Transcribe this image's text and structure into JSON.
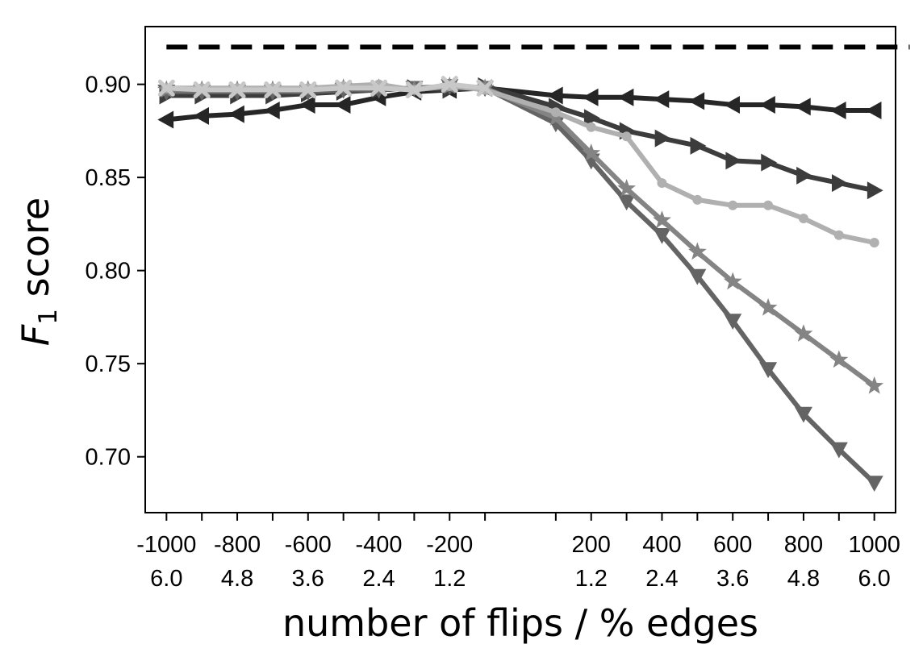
{
  "chart_data": {
    "type": "line",
    "xlabel": "number of flips / % edges",
    "ylabel_main": "F",
    "ylabel_sub": "1",
    "ylabel_rest": " score",
    "xlim": [
      -1060,
      1060
    ],
    "ylim": [
      0.67,
      0.931
    ],
    "yticks": [
      "0.70",
      "0.75",
      "0.80",
      "0.85",
      "0.90"
    ],
    "ytick_values": [
      0.7,
      0.75,
      0.8,
      0.85,
      0.9
    ],
    "xticks": [
      {
        "x": -1000,
        "top": "-1000",
        "bottom": "6.0"
      },
      {
        "x": -900,
        "top": "",
        "bottom": ""
      },
      {
        "x": -800,
        "top": "-800",
        "bottom": "4.8"
      },
      {
        "x": -700,
        "top": "",
        "bottom": ""
      },
      {
        "x": -600,
        "top": "-600",
        "bottom": "3.6"
      },
      {
        "x": -500,
        "top": "",
        "bottom": ""
      },
      {
        "x": -400,
        "top": "-400",
        "bottom": "2.4"
      },
      {
        "x": -300,
        "top": "",
        "bottom": ""
      },
      {
        "x": -200,
        "top": "-200",
        "bottom": "1.2"
      },
      {
        "x": -100,
        "top": "",
        "bottom": ""
      },
      {
        "x": 100,
        "top": "",
        "bottom": ""
      },
      {
        "x": 200,
        "top": "200",
        "bottom": "1.2"
      },
      {
        "x": 300,
        "top": "",
        "bottom": ""
      },
      {
        "x": 400,
        "top": "400",
        "bottom": "2.4"
      },
      {
        "x": 500,
        "top": "",
        "bottom": ""
      },
      {
        "x": 600,
        "top": "600",
        "bottom": "3.6"
      },
      {
        "x": 700,
        "top": "",
        "bottom": ""
      },
      {
        "x": 800,
        "top": "800",
        "bottom": "4.8"
      },
      {
        "x": 900,
        "top": "",
        "bottom": ""
      },
      {
        "x": 1000,
        "top": "1000",
        "bottom": "6.0"
      }
    ],
    "reference_line": {
      "y": 0.92,
      "x_start": -1000,
      "x_end": 1100,
      "color": "#000000",
      "style": "dashed"
    },
    "x": [
      -1000,
      -900,
      -800,
      -700,
      -600,
      -500,
      -400,
      -300,
      -200,
      -100,
      100,
      200,
      300,
      400,
      500,
      600,
      700,
      800,
      900,
      1000
    ],
    "series": [
      {
        "marker": "triangle-left",
        "color": "#262626",
        "values": [
          0.881,
          0.883,
          0.884,
          0.886,
          0.889,
          0.889,
          0.893,
          0.896,
          0.897,
          0.898,
          0.894,
          0.893,
          0.893,
          0.892,
          0.891,
          0.889,
          0.889,
          0.888,
          0.886,
          0.886
        ]
      },
      {
        "marker": "triangle-right",
        "color": "#3c3c3c",
        "values": [
          0.894,
          0.894,
          0.894,
          0.894,
          0.895,
          0.896,
          0.897,
          0.898,
          0.897,
          0.899,
          0.888,
          0.882,
          0.875,
          0.871,
          0.867,
          0.859,
          0.858,
          0.851,
          0.847,
          0.843
        ]
      },
      {
        "marker": "triangle-down",
        "color": "#646464",
        "values": [
          0.896,
          0.896,
          0.896,
          0.896,
          0.896,
          0.897,
          0.897,
          0.898,
          0.899,
          0.898,
          0.879,
          0.859,
          0.837,
          0.819,
          0.797,
          0.773,
          0.747,
          0.723,
          0.704,
          0.686
        ]
      },
      {
        "marker": "star",
        "color": "#848484",
        "values": [
          0.897,
          0.897,
          0.897,
          0.897,
          0.897,
          0.898,
          0.898,
          0.897,
          0.899,
          0.898,
          0.882,
          0.863,
          0.844,
          0.827,
          0.81,
          0.794,
          0.78,
          0.766,
          0.752,
          0.738
        ]
      },
      {
        "marker": "circle",
        "color": "#b0b0b0",
        "values": [
          0.898,
          0.898,
          0.898,
          0.898,
          0.898,
          0.899,
          0.9,
          0.897,
          0.899,
          0.897,
          0.885,
          0.877,
          0.872,
          0.847,
          0.838,
          0.835,
          0.835,
          0.828,
          0.819,
          0.815
        ]
      },
      {
        "marker": "x",
        "color": "#c8c8c8",
        "values": [
          0.898,
          0.897,
          0.897,
          0.897,
          0.897,
          0.898,
          0.898,
          0.897,
          0.9,
          0.898,
          null,
          null,
          null,
          null,
          null,
          null,
          null,
          null,
          null,
          null
        ]
      }
    ]
  }
}
